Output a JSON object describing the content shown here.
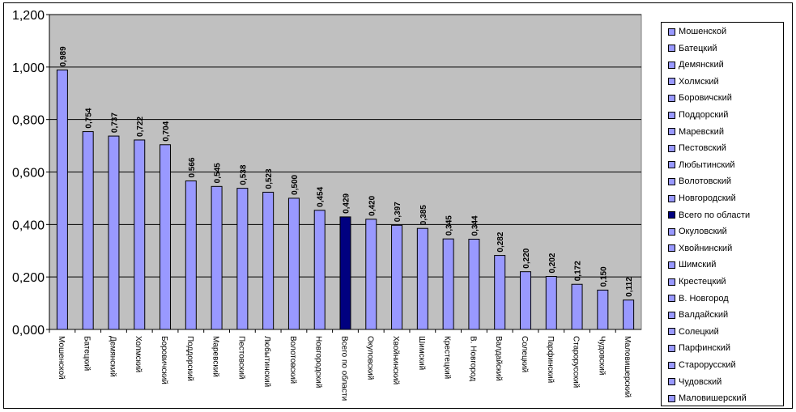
{
  "chart_data": {
    "type": "bar",
    "categories": [
      "Мошенской",
      "Батецкий",
      "Демянский",
      "Холмский",
      "Боровичский",
      "Поддорский",
      "Маревский",
      "Пестовский",
      "Любытинский",
      "Волотовский",
      "Новгородский",
      "Всего по области",
      "Окуловский",
      "Хвойнинский",
      "Шимский",
      "Крестецкий",
      "В. Новгород",
      "Валдайский",
      "Солецкий",
      "Парфинский",
      "Старорусский",
      "Чудовский",
      "Маловишерский"
    ],
    "values": [
      0.989,
      0.754,
      0.737,
      0.722,
      0.704,
      0.566,
      0.545,
      0.538,
      0.523,
      0.5,
      0.454,
      0.429,
      0.42,
      0.397,
      0.385,
      0.345,
      0.344,
      0.282,
      0.22,
      0.202,
      0.172,
      0.15,
      0.112
    ],
    "value_labels": [
      "0,989",
      "0,754",
      "0,737",
      "0,722",
      "0,704",
      "0,566",
      "0,545",
      "0,538",
      "0,523",
      "0,500",
      "0,454",
      "0,429",
      "0,420",
      "0,397",
      "0,385",
      "0,345",
      "0,344",
      "0,282",
      "0,220",
      "0,202",
      "0,172",
      "0,150",
      "0,112"
    ],
    "ylim": [
      0,
      1.2
    ],
    "yticks": [
      "0,000",
      "0,200",
      "0,400",
      "0,600",
      "0,800",
      "1,000",
      "1,200"
    ],
    "grid": true,
    "legend_position": "right",
    "highlight_index": 11,
    "colors": {
      "bar": "#9999ff",
      "highlight": "#000080",
      "plot_background": "#c0c0c0",
      "gridline": "#000000"
    }
  }
}
